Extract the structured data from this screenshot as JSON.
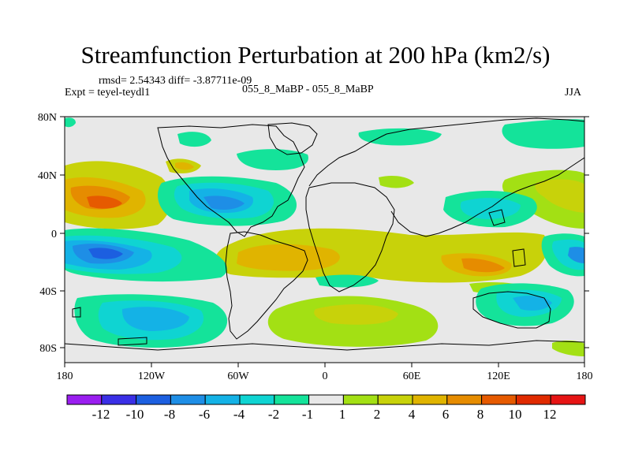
{
  "title": "Streamfunction Perturbation at 200 hPa (km2/s)",
  "stats": "rmsd= 2.54343 diff= -3.87711e-09",
  "experiment": "Expt = teyel-teydl1",
  "case": "055_8_MaBP - 055_8_MaBP",
  "season": "JJA",
  "lat_labels": [
    "80N",
    "40N",
    "0",
    "40S",
    "80S"
  ],
  "lon_labels": [
    "180",
    "120W",
    "60W",
    "0",
    "60E",
    "120E",
    "180"
  ],
  "colorbar": {
    "labels": [
      "-12",
      "-10",
      "-8",
      "-6",
      "-4",
      "-2",
      "-1",
      "1",
      "2",
      "4",
      "6",
      "8",
      "10",
      "12"
    ],
    "colors": [
      "#9a1ef0",
      "#3a2fe6",
      "#1c5fe0",
      "#1e8ee6",
      "#14b2e6",
      "#0fd4d2",
      "#14e39a",
      "#e8e8e8",
      "#a3e014",
      "#c8d20a",
      "#e0b400",
      "#e68c00",
      "#e65a00",
      "#e02a00",
      "#e61414"
    ]
  },
  "colors": {
    "neutral": "#e8e8e8",
    "land_outline": "#000000"
  }
}
